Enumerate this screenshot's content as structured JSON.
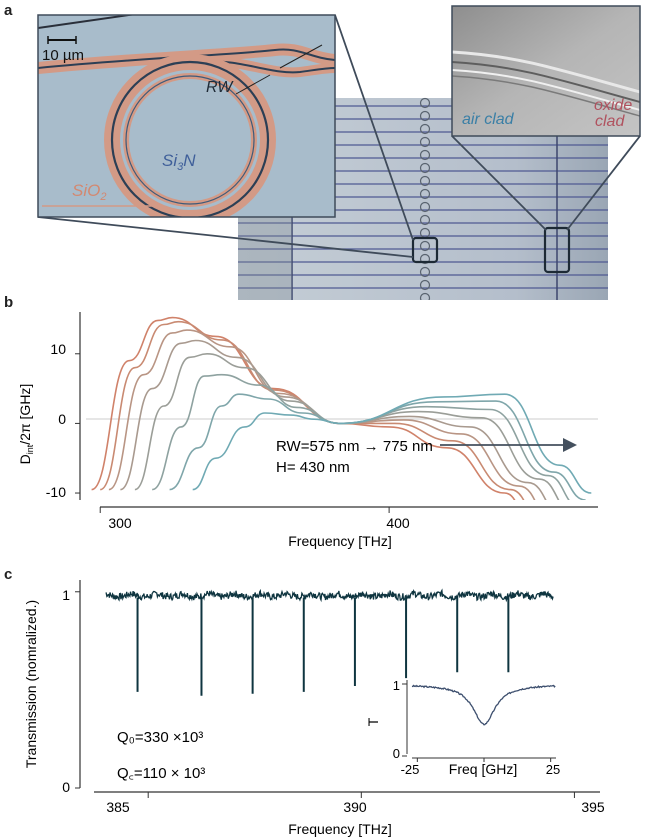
{
  "panel_a": {
    "letter": "a",
    "scale_bar": "10 µm",
    "labels": {
      "rw": "RW",
      "si3n": "Si",
      "si3n_sub": "3",
      "si3n_tail": "N",
      "sio2": "SiO",
      "sio2_sub": "2",
      "air": "air clad",
      "oxide1": "oxide",
      "oxide2": "clad"
    }
  },
  "panel_b": {
    "letter": "b",
    "ylabel_pre": "D",
    "ylabel_sub": "int",
    "ylabel_post": "/2π [GHz]",
    "xlabel": "Frequency [THz]",
    "yticks": [
      "10",
      "0",
      "-10"
    ],
    "xticks": [
      "300",
      "400"
    ],
    "annotation1": "RW=575 nm → 775 nm",
    "annotation2": "H= 430 nm"
  },
  "panel_c": {
    "letter": "c",
    "ylabel": "Transmission (nomralized.)",
    "xlabel": "Frequency [THz]",
    "yticks": [
      "1",
      "0"
    ],
    "xticks": [
      "385",
      "390",
      "395"
    ],
    "q0": "Q₀=330 ×10³",
    "qc": "Q꜀=110 × 10³",
    "inset": {
      "ylabel": "T",
      "xlabel": "Freq [GHz]",
      "yticks": [
        "1",
        "0"
      ],
      "xticks": [
        "-25",
        "0",
        "25"
      ]
    }
  },
  "chart_data": [
    {
      "type": "line",
      "xlabel": "Frequency [THz]",
      "ylabel": "Dint/2π [GHz]",
      "xlim": [
        293,
        473
      ],
      "ylim": [
        -11,
        16
      ],
      "series_note": "RW=575 nm → 775 nm",
      "series": [
        {
          "rw_index": 0,
          "color": "#d0826a",
          "x": [
            297,
            310,
            320,
            325,
            340,
            360,
            383,
            400,
            420,
            440,
            452
          ],
          "y": [
            -9.5,
            9,
            14.8,
            15.2,
            12.5,
            5,
            0,
            -0.5,
            -3.5,
            -10,
            -17
          ]
        },
        {
          "rw_index": 1,
          "color": "#c98a72",
          "x": [
            300,
            312,
            322,
            327,
            342,
            360,
            383,
            402,
            422,
            442,
            455
          ],
          "y": [
            -9.5,
            8,
            14.2,
            14.6,
            12,
            4.8,
            0,
            0,
            -2.5,
            -9.5,
            -16
          ]
        },
        {
          "rw_index": 2,
          "color": "#b99584",
          "x": [
            303,
            315,
            325,
            330,
            345,
            362,
            383,
            405,
            425,
            445,
            458
          ],
          "y": [
            -9.5,
            7,
            13,
            13.4,
            11,
            4.3,
            0,
            0.5,
            -1.5,
            -9,
            -15
          ]
        },
        {
          "rw_index": 3,
          "color": "#a99a8f",
          "x": [
            307,
            318,
            328,
            333,
            347,
            364,
            383,
            407,
            428,
            448,
            461
          ],
          "y": [
            -9.5,
            5,
            11.5,
            11.9,
            9.5,
            3.8,
            0,
            1,
            -0.5,
            -8.5,
            -14
          ]
        },
        {
          "rw_index": 4,
          "color": "#9b9e98",
          "x": [
            312,
            322,
            331,
            337,
            350,
            366,
            383,
            410,
            432,
            452,
            464
          ],
          "y": [
            -9.5,
            2.5,
            9.5,
            10,
            8,
            3.2,
            0,
            1.7,
            0.8,
            -8,
            -13
          ]
        },
        {
          "rw_index": 5,
          "color": "#8ea2a0",
          "x": [
            318,
            328,
            336,
            342,
            355,
            368,
            383,
            413,
            435,
            455,
            466
          ],
          "y": [
            -9.5,
            -0.5,
            6.8,
            7,
            5.5,
            2.3,
            0,
            2.4,
            2,
            -7.5,
            -12
          ]
        },
        {
          "rw_index": 6,
          "color": "#7fa6aa",
          "x": [
            324,
            334,
            342,
            348,
            358,
            370,
            383,
            416,
            437,
            457,
            468
          ],
          "y": [
            -9.5,
            -3.5,
            2.5,
            4.2,
            3.5,
            1.5,
            0,
            3.1,
            3.2,
            -7,
            -11
          ]
        },
        {
          "rw_index": 7,
          "color": "#70aab4",
          "x": [
            332,
            340,
            350,
            357,
            366,
            374,
            383,
            419,
            440,
            459,
            470
          ],
          "y": [
            -9.5,
            -5,
            -0.5,
            1.5,
            1.2,
            0.6,
            0,
            3.8,
            4.2,
            -6,
            -10
          ]
        }
      ]
    },
    {
      "type": "line",
      "xlabel": "Frequency [THz]",
      "ylabel": "Transmission (nomralized.)",
      "xlim": [
        383.4,
        395.6
      ],
      "ylim": [
        0,
        1.06
      ],
      "baseline": 1,
      "resonances": [
        {
          "x": 384.75,
          "depth": 0.49
        },
        {
          "x": 386.25,
          "depth": 0.47
        },
        {
          "x": 387.45,
          "depth": 0.48
        },
        {
          "x": 388.65,
          "depth": 0.49
        },
        {
          "x": 389.85,
          "depth": 0.52
        },
        {
          "x": 391.05,
          "depth": 0.56
        },
        {
          "x": 392.25,
          "depth": 0.59
        },
        {
          "x": 393.45,
          "depth": 0.59
        }
      ],
      "annotations": [
        "Q₀=330 ×10³",
        "Q꜀=110 × 10³"
      ]
    },
    {
      "type": "line",
      "xlabel": "Freq [GHz]",
      "ylabel": "T",
      "xlim": [
        -27,
        27
      ],
      "ylim": [
        0,
        1
      ],
      "dip": {
        "x": 0,
        "min": 0.45,
        "width": 5
      }
    }
  ]
}
